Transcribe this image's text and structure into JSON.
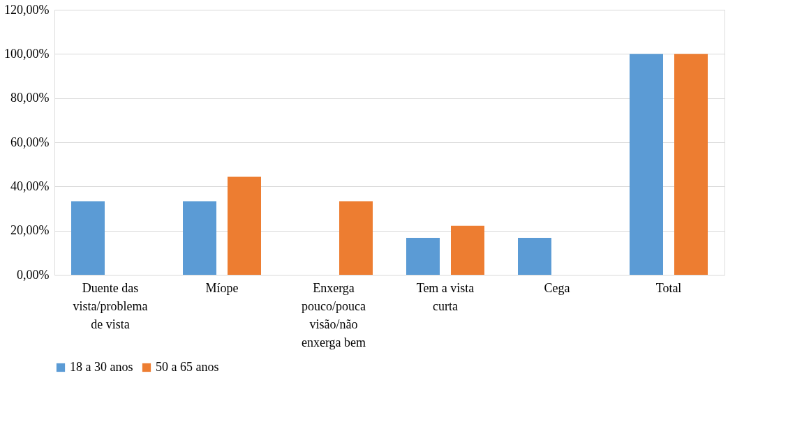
{
  "chart_data": {
    "type": "bar",
    "categories": [
      "Duente das vista/problema de vista",
      "Míope",
      "Enxerga pouco/pouca visão/não enxerga bem",
      "Tem a vista curta",
      "Cega",
      "Total"
    ],
    "series": [
      {
        "name": "18 a 30 anos",
        "color": "#5b9bd5",
        "values": [
          33.3,
          33.3,
          null,
          16.7,
          16.7,
          100
        ]
      },
      {
        "name": "50 a 65 anos",
        "color": "#ed7d31",
        "values": [
          null,
          44.4,
          33.3,
          22.2,
          null,
          100
        ]
      }
    ],
    "ylim": [
      0,
      120
    ],
    "yticks": [
      {
        "value": 0,
        "label": "0,00%"
      },
      {
        "value": 20,
        "label": "20,00%"
      },
      {
        "value": 40,
        "label": "40,00%"
      },
      {
        "value": 60,
        "label": "60,00%"
      },
      {
        "value": 80,
        "label": "80,00%"
      },
      {
        "value": 100,
        "label": "100,00%"
      },
      {
        "value": 120,
        "label": "120,00%"
      }
    ],
    "grid": "y",
    "legend": "bottom"
  }
}
